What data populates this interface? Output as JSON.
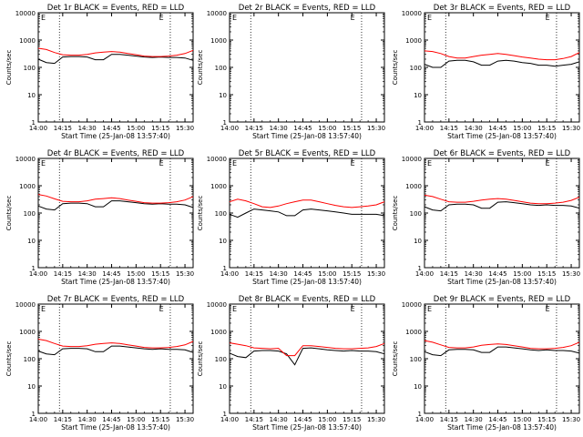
{
  "figure": {
    "xlabel": "Start Time (25-Jan-08 13:57:40)",
    "ylabel": "Counts/sec",
    "xticks": [
      "14:00",
      "14:15",
      "14:30",
      "14:45",
      "15:00",
      "15:15",
      "15:30"
    ],
    "yticks": [
      "1",
      "10",
      "100",
      "1000",
      "10000"
    ],
    "corner_marker": "E",
    "colors": {
      "events": "#000000",
      "lld": "#ff0000",
      "axis": "#000000",
      "background": "#ffffff"
    }
  },
  "chart_data": [
    {
      "type": "line",
      "title": "Det 1r BLACK = Events, RED = LLD",
      "xlabel": "Start Time (25-Jan-08 13:57:40)",
      "ylabel": "Counts/sec",
      "scale": "log",
      "ylim": [
        1,
        10000
      ],
      "x": [
        0,
        5,
        10,
        15,
        20,
        25,
        30,
        35,
        40,
        45,
        50,
        55,
        60,
        65,
        70,
        75,
        80,
        85,
        90,
        95
      ],
      "series": [
        {
          "name": "Events",
          "color": "#000000",
          "values": [
            200,
            150,
            140,
            240,
            250,
            250,
            240,
            190,
            190,
            300,
            300,
            280,
            260,
            240,
            230,
            240,
            230,
            230,
            220,
            180
          ]
        },
        {
          "name": "LLD",
          "color": "#ff0000",
          "values": [
            500,
            450,
            350,
            290,
            280,
            280,
            300,
            340,
            360,
            380,
            360,
            320,
            290,
            260,
            250,
            250,
            260,
            280,
            320,
            420
          ]
        }
      ]
    },
    {
      "type": "line",
      "title": "Det 2r BLACK = Events, RED = LLD",
      "xlabel": "Start Time (25-Jan-08 13:57:40)",
      "ylabel": "Counts/sec",
      "scale": "log",
      "ylim": [
        1,
        10000
      ],
      "x": [
        0,
        5,
        10,
        15,
        20,
        25,
        30,
        35,
        40,
        45,
        50,
        55,
        60,
        65,
        70,
        75,
        80,
        85,
        90,
        95
      ],
      "series": []
    },
    {
      "type": "line",
      "title": "Det 3r BLACK = Events, RED = LLD",
      "xlabel": "Start Time (25-Jan-08 13:57:40)",
      "ylabel": "Counts/sec",
      "scale": "log",
      "ylim": [
        1,
        10000
      ],
      "x": [
        0,
        5,
        10,
        15,
        20,
        25,
        30,
        35,
        40,
        45,
        50,
        55,
        60,
        65,
        70,
        75,
        80,
        85,
        90,
        95
      ],
      "series": [
        {
          "name": "Events",
          "color": "#000000",
          "values": [
            130,
            100,
            100,
            170,
            180,
            180,
            160,
            120,
            120,
            170,
            180,
            170,
            150,
            140,
            120,
            120,
            110,
            120,
            130,
            160
          ]
        },
        {
          "name": "LLD",
          "color": "#ff0000",
          "values": [
            400,
            380,
            320,
            250,
            220,
            220,
            250,
            280,
            300,
            320,
            300,
            270,
            240,
            220,
            200,
            190,
            190,
            210,
            250,
            350
          ]
        }
      ]
    },
    {
      "type": "line",
      "title": "Det 4r BLACK = Events, RED = LLD",
      "xlabel": "Start Time (25-Jan-08 13:57:40)",
      "ylabel": "Counts/sec",
      "scale": "log",
      "ylim": [
        1,
        10000
      ],
      "x": [
        0,
        5,
        10,
        15,
        20,
        25,
        30,
        35,
        40,
        45,
        50,
        55,
        60,
        65,
        70,
        75,
        80,
        85,
        90,
        95
      ],
      "series": [
        {
          "name": "Events",
          "color": "#000000",
          "values": [
            180,
            140,
            130,
            220,
            230,
            230,
            220,
            170,
            170,
            280,
            280,
            260,
            240,
            220,
            210,
            220,
            210,
            210,
            200,
            160
          ]
        },
        {
          "name": "LLD",
          "color": "#ff0000",
          "values": [
            480,
            420,
            330,
            270,
            260,
            260,
            280,
            320,
            340,
            360,
            340,
            300,
            270,
            240,
            230,
            230,
            240,
            260,
            300,
            400
          ]
        }
      ]
    },
    {
      "type": "line",
      "title": "Det 5r BLACK = Events, RED = LLD",
      "xlabel": "Start Time (25-Jan-08 13:57:40)",
      "ylabel": "Counts/sec",
      "scale": "log",
      "ylim": [
        1,
        10000
      ],
      "x": [
        0,
        5,
        10,
        15,
        20,
        25,
        30,
        35,
        40,
        45,
        50,
        55,
        60,
        65,
        70,
        75,
        80,
        85,
        90,
        95
      ],
      "series": [
        {
          "name": "Events",
          "color": "#000000",
          "values": [
            90,
            70,
            100,
            140,
            130,
            120,
            110,
            80,
            80,
            130,
            140,
            130,
            120,
            110,
            100,
            90,
            90,
            90,
            90,
            80
          ]
        },
        {
          "name": "LLD",
          "color": "#ff0000",
          "values": [
            260,
            320,
            280,
            220,
            170,
            160,
            180,
            220,
            260,
            300,
            300,
            260,
            220,
            190,
            170,
            160,
            170,
            180,
            200,
            260
          ]
        }
      ]
    },
    {
      "type": "line",
      "title": "Det 6r BLACK = Events, RED = LLD",
      "xlabel": "Start Time (25-Jan-08 13:57:40)",
      "ylabel": "Counts/sec",
      "scale": "log",
      "ylim": [
        1,
        10000
      ],
      "x": [
        0,
        5,
        10,
        15,
        20,
        25,
        30,
        35,
        40,
        45,
        50,
        55,
        60,
        65,
        70,
        75,
        80,
        85,
        90,
        95
      ],
      "series": [
        {
          "name": "Events",
          "color": "#000000",
          "values": [
            170,
            130,
            120,
            200,
            210,
            210,
            200,
            150,
            150,
            250,
            260,
            240,
            220,
            200,
            190,
            200,
            190,
            190,
            180,
            150
          ]
        },
        {
          "name": "LLD",
          "color": "#ff0000",
          "values": [
            450,
            400,
            320,
            260,
            250,
            250,
            270,
            300,
            320,
            340,
            320,
            290,
            260,
            230,
            220,
            220,
            230,
            250,
            290,
            380
          ]
        }
      ]
    },
    {
      "type": "line",
      "title": "Det 7r BLACK = Events, RED = LLD",
      "xlabel": "Start Time (25-Jan-08 13:57:40)",
      "ylabel": "Counts/sec",
      "scale": "log",
      "ylim": [
        1,
        10000
      ],
      "x": [
        0,
        5,
        10,
        15,
        20,
        25,
        30,
        35,
        40,
        45,
        50,
        55,
        60,
        65,
        70,
        75,
        80,
        85,
        90,
        95
      ],
      "series": [
        {
          "name": "Events",
          "color": "#000000",
          "values": [
            190,
            150,
            140,
            230,
            240,
            240,
            230,
            180,
            180,
            290,
            290,
            270,
            250,
            230,
            220,
            230,
            220,
            220,
            210,
            170
          ]
        },
        {
          "name": "LLD",
          "color": "#ff0000",
          "values": [
            520,
            460,
            360,
            290,
            280,
            280,
            300,
            340,
            360,
            380,
            360,
            320,
            290,
            260,
            250,
            250,
            260,
            280,
            320,
            430
          ]
        }
      ]
    },
    {
      "type": "line",
      "title": "Det 8r BLACK = Events, RED = LLD",
      "xlabel": "Start Time (25-Jan-08 13:57:40)",
      "ylabel": "Counts/sec",
      "scale": "log",
      "ylim": [
        1,
        10000
      ],
      "x": [
        0,
        5,
        10,
        15,
        20,
        25,
        30,
        35,
        40,
        45,
        50,
        55,
        60,
        65,
        70,
        75,
        80,
        85,
        90,
        95
      ],
      "series": [
        {
          "name": "Events",
          "color": "#000000",
          "values": [
            160,
            120,
            110,
            190,
            200,
            200,
            190,
            150,
            60,
            240,
            250,
            230,
            210,
            200,
            190,
            200,
            190,
            190,
            180,
            150
          ]
        },
        {
          "name": "LLD",
          "color": "#ff0000",
          "values": [
            380,
            340,
            300,
            250,
            240,
            230,
            240,
            130,
            130,
            300,
            300,
            280,
            260,
            240,
            230,
            230,
            240,
            250,
            280,
            360
          ]
        }
      ]
    },
    {
      "type": "line",
      "title": "Det 9r BLACK = Events, RED = LLD",
      "xlabel": "Start Time (25-Jan-08 13:57:40)",
      "ylabel": "Counts/sec",
      "scale": "log",
      "ylim": [
        1,
        10000
      ],
      "x": [
        0,
        5,
        10,
        15,
        20,
        25,
        30,
        35,
        40,
        45,
        50,
        55,
        60,
        65,
        70,
        75,
        80,
        85,
        90,
        95
      ],
      "series": [
        {
          "name": "Events",
          "color": "#000000",
          "values": [
            180,
            140,
            130,
            210,
            220,
            220,
            210,
            170,
            170,
            270,
            270,
            250,
            230,
            210,
            200,
            210,
            200,
            200,
            190,
            160
          ]
        },
        {
          "name": "LLD",
          "color": "#ff0000",
          "values": [
            460,
            400,
            320,
            260,
            250,
            250,
            270,
            310,
            330,
            350,
            330,
            300,
            270,
            240,
            230,
            230,
            240,
            260,
            300,
            400
          ]
        }
      ]
    }
  ]
}
